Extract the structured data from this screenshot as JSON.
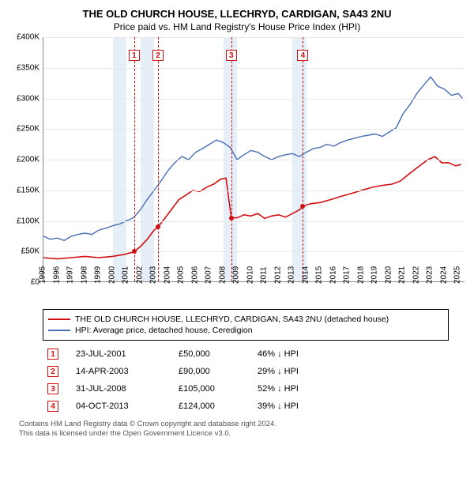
{
  "title": "THE OLD CHURCH HOUSE, LLECHRYD, CARDIGAN, SA43 2NU",
  "subtitle": "Price paid vs. HM Land Registry's House Price Index (HPI)",
  "chart": {
    "type": "line",
    "background_color": "#ffffff",
    "grid_color": "#e8e8e8",
    "band_color": "#e6eef7",
    "x": {
      "min": 1995,
      "max": 2025.5,
      "ticks": [
        1995,
        1996,
        1997,
        1998,
        1999,
        2000,
        2001,
        2002,
        2003,
        2004,
        2005,
        2006,
        2007,
        2008,
        2009,
        2010,
        2011,
        2012,
        2013,
        2014,
        2015,
        2016,
        2017,
        2018,
        2019,
        2020,
        2021,
        2022,
        2023,
        2024,
        2025
      ]
    },
    "y": {
      "min": 0,
      "max": 400000,
      "ticks": [
        0,
        50000,
        100000,
        150000,
        200000,
        250000,
        300000,
        350000,
        400000
      ]
    },
    "bands": [
      [
        2000,
        2001
      ],
      [
        2002,
        2003
      ],
      [
        2008,
        2009
      ],
      [
        2013,
        2014
      ]
    ],
    "marker_lines": [
      {
        "x": 2001.56,
        "label": "1",
        "box_top": 16
      },
      {
        "x": 2003.29,
        "label": "2",
        "box_top": 16
      },
      {
        "x": 2008.58,
        "label": "3",
        "box_top": 16
      },
      {
        "x": 2013.76,
        "label": "4",
        "box_top": 16
      }
    ],
    "series": [
      {
        "name": "price_paid",
        "color": "#d01010",
        "width": 1.6,
        "points": [
          [
            1995,
            40000
          ],
          [
            1996,
            38000
          ],
          [
            1997,
            40000
          ],
          [
            1998,
            42000
          ],
          [
            1999,
            40000
          ],
          [
            2000,
            42000
          ],
          [
            2000.8,
            45000
          ],
          [
            2001.3,
            48000
          ],
          [
            2001.56,
            50000
          ],
          [
            2002,
            58000
          ],
          [
            2002.5,
            70000
          ],
          [
            2003,
            85000
          ],
          [
            2003.29,
            90000
          ],
          [
            2003.8,
            105000
          ],
          [
            2004.3,
            120000
          ],
          [
            2004.8,
            135000
          ],
          [
            2005.3,
            142000
          ],
          [
            2005.8,
            150000
          ],
          [
            2006.3,
            148000
          ],
          [
            2006.8,
            155000
          ],
          [
            2007.3,
            160000
          ],
          [
            2007.8,
            168000
          ],
          [
            2008.2,
            170000
          ],
          [
            2008.58,
            105000
          ],
          [
            2009,
            105000
          ],
          [
            2009.5,
            110000
          ],
          [
            2010,
            108000
          ],
          [
            2010.5,
            112000
          ],
          [
            2011,
            104000
          ],
          [
            2011.5,
            108000
          ],
          [
            2012,
            110000
          ],
          [
            2012.5,
            106000
          ],
          [
            2013,
            112000
          ],
          [
            2013.5,
            118000
          ],
          [
            2013.76,
            124000
          ],
          [
            2014.3,
            128000
          ],
          [
            2015,
            130000
          ],
          [
            2015.8,
            135000
          ],
          [
            2016.5,
            140000
          ],
          [
            2017.3,
            145000
          ],
          [
            2018,
            150000
          ],
          [
            2018.8,
            155000
          ],
          [
            2019.5,
            158000
          ],
          [
            2020.2,
            160000
          ],
          [
            2020.8,
            165000
          ],
          [
            2021.5,
            178000
          ],
          [
            2022.2,
            190000
          ],
          [
            2022.8,
            200000
          ],
          [
            2023.3,
            205000
          ],
          [
            2023.8,
            195000
          ],
          [
            2024.3,
            195000
          ],
          [
            2024.8,
            190000
          ],
          [
            2025.2,
            192000
          ]
        ],
        "dots": [
          [
            2001.56,
            50000
          ],
          [
            2003.29,
            90000
          ],
          [
            2008.58,
            105000
          ],
          [
            2013.76,
            124000
          ]
        ]
      },
      {
        "name": "hpi",
        "color": "#4a6fb5",
        "width": 1.4,
        "points": [
          [
            1995,
            75000
          ],
          [
            1995.5,
            70000
          ],
          [
            1996,
            72000
          ],
          [
            1996.5,
            68000
          ],
          [
            1997,
            75000
          ],
          [
            1997.5,
            78000
          ],
          [
            1998,
            80000
          ],
          [
            1998.5,
            78000
          ],
          [
            1999,
            85000
          ],
          [
            1999.5,
            88000
          ],
          [
            2000,
            92000
          ],
          [
            2000.5,
            95000
          ],
          [
            2001,
            100000
          ],
          [
            2001.5,
            105000
          ],
          [
            2002,
            118000
          ],
          [
            2002.5,
            135000
          ],
          [
            2003,
            150000
          ],
          [
            2003.5,
            165000
          ],
          [
            2004,
            182000
          ],
          [
            2004.5,
            195000
          ],
          [
            2005,
            205000
          ],
          [
            2005.5,
            200000
          ],
          [
            2006,
            212000
          ],
          [
            2006.5,
            218000
          ],
          [
            2007,
            225000
          ],
          [
            2007.5,
            232000
          ],
          [
            2008,
            228000
          ],
          [
            2008.5,
            220000
          ],
          [
            2009,
            200000
          ],
          [
            2009.5,
            208000
          ],
          [
            2010,
            215000
          ],
          [
            2010.5,
            212000
          ],
          [
            2011,
            205000
          ],
          [
            2011.5,
            200000
          ],
          [
            2012,
            205000
          ],
          [
            2012.5,
            208000
          ],
          [
            2013,
            210000
          ],
          [
            2013.5,
            205000
          ],
          [
            2014,
            212000
          ],
          [
            2014.5,
            218000
          ],
          [
            2015,
            220000
          ],
          [
            2015.5,
            225000
          ],
          [
            2016,
            222000
          ],
          [
            2016.5,
            228000
          ],
          [
            2017,
            232000
          ],
          [
            2017.5,
            235000
          ],
          [
            2018,
            238000
          ],
          [
            2018.5,
            240000
          ],
          [
            2019,
            242000
          ],
          [
            2019.5,
            238000
          ],
          [
            2020,
            245000
          ],
          [
            2020.5,
            252000
          ],
          [
            2021,
            275000
          ],
          [
            2021.5,
            290000
          ],
          [
            2022,
            308000
          ],
          [
            2022.5,
            322000
          ],
          [
            2023,
            335000
          ],
          [
            2023.5,
            320000
          ],
          [
            2024,
            315000
          ],
          [
            2024.5,
            305000
          ],
          [
            2025,
            308000
          ],
          [
            2025.3,
            300000
          ]
        ]
      }
    ]
  },
  "legend": {
    "items": [
      {
        "color": "#d01010",
        "label": "THE OLD CHURCH HOUSE, LLECHRYD, CARDIGAN, SA43 2NU (detached house)"
      },
      {
        "color": "#4a6fb5",
        "label": "HPI: Average price, detached house, Ceredigion"
      }
    ]
  },
  "events": {
    "arrow": "↓",
    "rows": [
      {
        "n": "1",
        "date": "23-JUL-2001",
        "price": "£50,000",
        "pct": "46%",
        "suffix": "HPI"
      },
      {
        "n": "2",
        "date": "14-APR-2003",
        "price": "£90,000",
        "pct": "29%",
        "suffix": "HPI"
      },
      {
        "n": "3",
        "date": "31-JUL-2008",
        "price": "£105,000",
        "pct": "52%",
        "suffix": "HPI"
      },
      {
        "n": "4",
        "date": "04-OCT-2013",
        "price": "£124,000",
        "pct": "39%",
        "suffix": "HPI"
      }
    ]
  },
  "footer_line1": "Contains HM Land Registry data © Crown copyright and database right 2024.",
  "footer_line2": "This data is licensed under the Open Government Licence v3.0.",
  "y_prefix": "£",
  "y_labels": [
    "£0",
    "£50K",
    "£100K",
    "£150K",
    "£200K",
    "£250K",
    "£300K",
    "£350K",
    "£400K"
  ]
}
